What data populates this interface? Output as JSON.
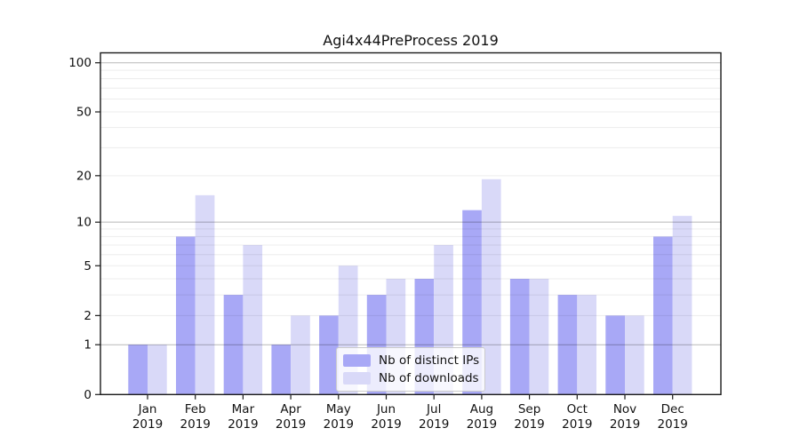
{
  "chart": {
    "title": "Agi4x44PreProcess 2019"
  },
  "legend": {
    "items": [
      {
        "label": "Nb of distinct IPs",
        "color": "#a8a8f6"
      },
      {
        "label": "Nb of downloads",
        "color": "#d9d9f8"
      }
    ]
  },
  "chart_data": {
    "type": "bar",
    "title": "Agi4x44PreProcess 2019",
    "month_labels": [
      "Jan",
      "Feb",
      "Mar",
      "Apr",
      "May",
      "Jun",
      "Jul",
      "Aug",
      "Sep",
      "Oct",
      "Nov",
      "Dec"
    ],
    "year_label": "2019",
    "categories": [
      "Jan 2019",
      "Feb 2019",
      "Mar 2019",
      "Apr 2019",
      "May 2019",
      "Jun 2019",
      "Jul 2019",
      "Aug 2019",
      "Sep 2019",
      "Oct 2019",
      "Nov 2019",
      "Dec 2019"
    ],
    "series": [
      {
        "name": "Nb of distinct IPs",
        "color": "#a8a8f6",
        "values": [
          1,
          8,
          3,
          1,
          2,
          3,
          4,
          12,
          4,
          3,
          2,
          8
        ]
      },
      {
        "name": "Nb of downloads",
        "color": "#d9d9f8",
        "values": [
          1,
          15,
          7,
          2,
          5,
          4,
          7,
          19,
          4,
          3,
          2,
          11
        ]
      }
    ],
    "yscale": "symlog-log1p",
    "yticks": [
      0,
      1,
      2,
      5,
      10,
      20,
      50,
      100
    ],
    "ylim": [
      0,
      113
    ],
    "grid": "horizontal minor at 1-10 step 1 and 20-100 step 10, major at 1,10,100",
    "legend_position": "lower center inside plot"
  }
}
